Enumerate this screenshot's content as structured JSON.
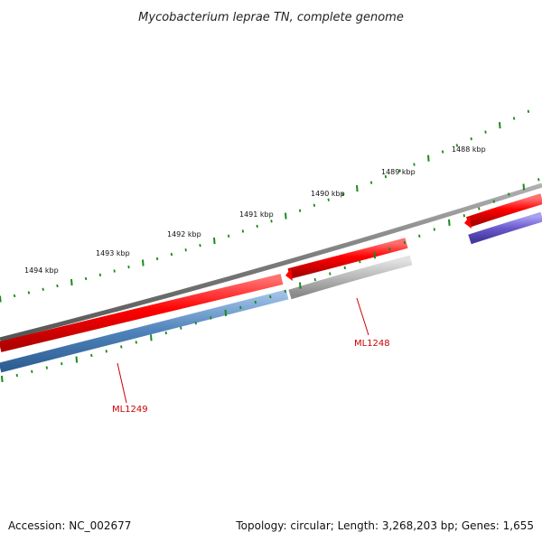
{
  "title": "Mycobacterium leprae TN, complete genome",
  "footer": {
    "accession": "Accession: NC_002677",
    "summary": "Topology: circular; Length: 3,268,203 bp; Genes: 1,655"
  },
  "scale_labels": [
    "1494 kbp",
    "1493 kbp",
    "1492 kbp",
    "1491 kbp",
    "1490 kbp",
    "1489 kbp",
    "1488 kbp"
  ],
  "gene_labels": [
    {
      "name": "ML1249"
    },
    {
      "name": "ML1248"
    }
  ],
  "colors": {
    "backbone": "#7a7a7a",
    "forward_gene": "#ff0000",
    "reverse_gene_blue": "#4f83bb",
    "reverse_gene_grey": "#b8b8b8",
    "reverse_gene_purple": "#6a5acd",
    "tick": "#1a8a1a",
    "gene_label": "#cc0000"
  }
}
